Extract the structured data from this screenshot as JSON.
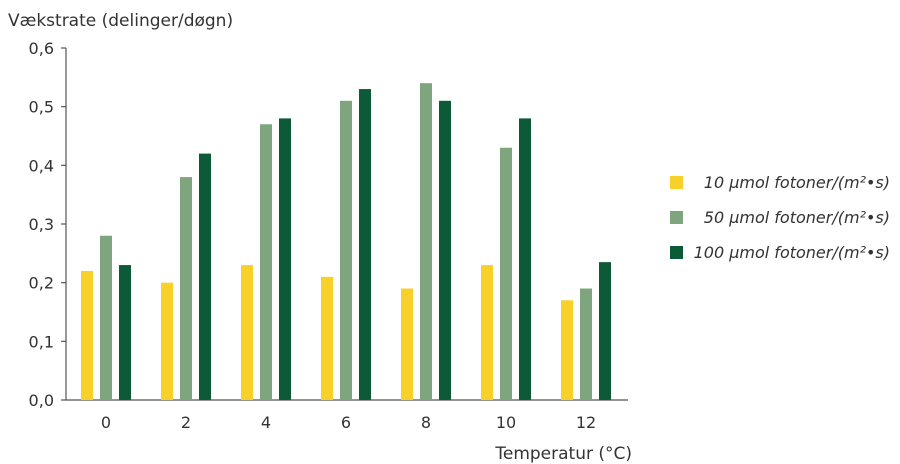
{
  "chart_data": {
    "type": "bar",
    "ylabel": "Vækstrate (delinger/døgn)",
    "xlabel": "Temperatur (°C)",
    "categories": [
      "0",
      "2",
      "4",
      "6",
      "8",
      "10",
      "12"
    ],
    "y_ticks": [
      "0,0",
      "0,1",
      "0,2",
      "0,3",
      "0,4",
      "0,5",
      "0,6"
    ],
    "ylim": [
      0,
      0.6
    ],
    "grid": false,
    "legend_position": "right",
    "series": [
      {
        "name": "10 μmol fotoner/(m²•s)",
        "color": "#f7d12a",
        "values": [
          0.22,
          0.2,
          0.23,
          0.21,
          0.19,
          0.23,
          0.17
        ]
      },
      {
        "name": "50 μmol fotoner/(m²•s)",
        "color": "#7fa57f",
        "values": [
          0.28,
          0.38,
          0.47,
          0.51,
          0.54,
          0.43,
          0.19
        ]
      },
      {
        "name": "100 μmol fotoner/(m²•s)",
        "color": "#0c5a37",
        "values": [
          0.23,
          0.42,
          0.48,
          0.53,
          0.51,
          0.48,
          0.235
        ]
      }
    ]
  }
}
